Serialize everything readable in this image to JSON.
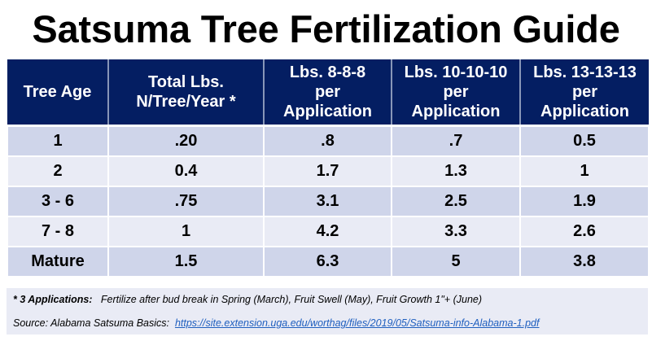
{
  "title": "Satsuma Tree Fertilization Guide",
  "colors": {
    "header_bg": "#041e62",
    "row_odd": "#cfd5ea",
    "row_even": "#e9ebf5",
    "link": "#1f5fbf"
  },
  "table": {
    "headers": [
      [
        "Tree Age"
      ],
      [
        "Total Lbs.",
        "N/Tree/Year *"
      ],
      [
        "Lbs. 8-8-8",
        "per",
        "Application"
      ],
      [
        "Lbs. 10-10-10",
        "per",
        "Application"
      ],
      [
        "Lbs. 13-13-13",
        "per",
        "Application"
      ]
    ],
    "rows": [
      [
        "1",
        ".20",
        ".8",
        ".7",
        "0.5"
      ],
      [
        "2",
        "0.4",
        "1.7",
        "1.3",
        "1"
      ],
      [
        "3 - 6",
        ".75",
        "3.1",
        "2.5",
        "1.9"
      ],
      [
        "7 - 8",
        "1",
        "4.2",
        "3.3",
        "2.6"
      ],
      [
        "Mature",
        "1.5",
        "6.3",
        "5",
        "3.8"
      ]
    ]
  },
  "footer": {
    "note_label": "* 3 Applications:",
    "note_text": "Fertilize after bud break in Spring (March), Fruit Swell (May), Fruit Growth  1\"+ (June)",
    "source_label": "Source:  Alabama Satsuma Basics:",
    "source_link": "https://site.extension.uga.edu/worthag/files/2019/05/Satsuma-info-Alabama-1.pdf"
  }
}
